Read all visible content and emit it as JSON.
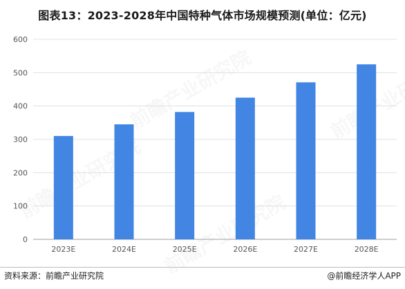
{
  "title": "图表13：2023-2028年中国特种气体市场规模预测(单位：亿元)",
  "footer": {
    "source": "资料来源：前瞻产业研究院",
    "brand": "@前瞻经济学人APP"
  },
  "watermark": "前瞻产业研究院",
  "colors": {
    "bar": "#4285e3",
    "axis": "#9e9e9e",
    "grid": "#e0e0e0",
    "tick": "#555555"
  },
  "chart_data": {
    "type": "bar",
    "title": "图表13：2023-2028年中国特种气体市场规模预测(单位：亿元)",
    "categories": [
      "2023E",
      "2024E",
      "2025E",
      "2026E",
      "2027E",
      "2028E"
    ],
    "values": [
      310,
      345,
      382,
      425,
      471,
      525
    ],
    "ylim": [
      0,
      600
    ],
    "yticks": [
      0,
      100,
      200,
      300,
      400,
      500,
      600
    ],
    "grid": true,
    "legend": "none"
  }
}
